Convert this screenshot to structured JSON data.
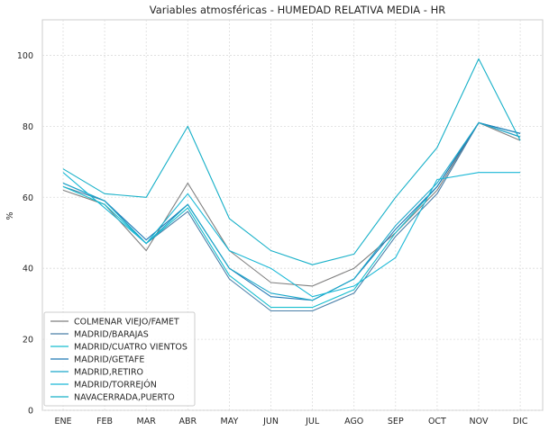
{
  "chart_data": {
    "type": "line",
    "title": "Variables atmosféricas - HUMEDAD RELATIVA MEDIA - HR",
    "xlabel": "",
    "ylabel": "%",
    "categories": [
      "ENE",
      "FEB",
      "MAR",
      "ABR",
      "MAY",
      "JUN",
      "JUL",
      "AGO",
      "SEP",
      "OCT",
      "NOV",
      "DIC"
    ],
    "ylim": [
      0,
      110
    ],
    "yticks": [
      0,
      20,
      40,
      60,
      80,
      100
    ],
    "grid": true,
    "legend_position": "lower-left",
    "series": [
      {
        "name": "COLMENAR VIEJO/FAMET",
        "color": "#7f7f7f",
        "values": [
          62,
          58,
          45,
          64,
          45,
          36,
          35,
          40,
          50,
          62,
          81,
          76
        ]
      },
      {
        "name": "MADRID/BARAJAS",
        "color": "#4a7fa8",
        "values": [
          63,
          59,
          47,
          56,
          37,
          28,
          28,
          33,
          49,
          61,
          81,
          77
        ]
      },
      {
        "name": "MADRID/CUATRO VIENTOS",
        "color": "#17becf",
        "values": [
          63,
          58,
          47,
          57,
          38,
          29,
          29,
          34,
          50,
          63,
          81,
          78
        ]
      },
      {
        "name": "MADRID/GETAFE",
        "color": "#1f77b4",
        "values": [
          64,
          59,
          48,
          58,
          40,
          32,
          31,
          37,
          51,
          63,
          81,
          78
        ]
      },
      {
        "name": "MADRID,RETIRO",
        "color": "#1aa7c9",
        "values": [
          64,
          59,
          47,
          58,
          40,
          33,
          31,
          37,
          52,
          64,
          81,
          77
        ]
      },
      {
        "name": "MADRID/TORREJÓN",
        "color": "#1bb8d6",
        "values": [
          67,
          57,
          47,
          61,
          45,
          40,
          32,
          35,
          43,
          65,
          67,
          67
        ]
      },
      {
        "name": "NAVACERRADA,PUERTO",
        "color": "#17b0c8",
        "values": [
          68,
          61,
          60,
          80,
          54,
          45,
          41,
          44,
          60,
          74,
          99,
          76
        ]
      }
    ]
  }
}
